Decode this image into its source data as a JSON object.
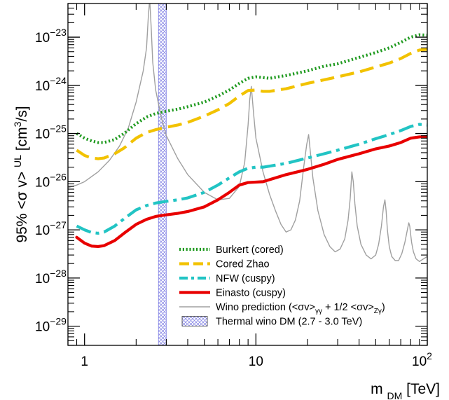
{
  "chart_data": {
    "type": "line",
    "xlabel": "m_DM [TeV]",
    "ylabel": "95% <σ v>^UL [cm^3/s]",
    "x_scale": "log",
    "y_scale": "log",
    "xlim": [
      0.8,
      100
    ],
    "ylim": [
      4e-30,
      5e-23
    ],
    "grid": false,
    "legend_position": "lower-right",
    "x_ticks": [
      {
        "value": 1,
        "label": "1"
      },
      {
        "value": 10,
        "label": "10"
      },
      {
        "value": 100,
        "label": "10",
        "sup": "2"
      }
    ],
    "y_ticks": [
      {
        "value": 1e-29,
        "label": "10",
        "sup": "−29"
      },
      {
        "value": 1e-28,
        "label": "10",
        "sup": "−28"
      },
      {
        "value": 1e-27,
        "label": "10",
        "sup": "−27"
      },
      {
        "value": 1e-26,
        "label": "10",
        "sup": "−26"
      },
      {
        "value": 1e-25,
        "label": "10",
        "sup": "−25"
      },
      {
        "value": 1e-24,
        "label": "10",
        "sup": "−24"
      },
      {
        "value": 1e-23,
        "label": "10",
        "sup": "−23"
      }
    ],
    "band": {
      "name": "Thermal wino DM (2.7 - 3.0 TeV)",
      "x_range": [
        2.7,
        3.0
      ],
      "color": "#8a8ae6"
    },
    "series": [
      {
        "name": "Burkert (cored)",
        "color": "#1f9a1f",
        "style": "dotted",
        "x": [
          0.9,
          1.0,
          1.1,
          1.2,
          1.3,
          1.5,
          1.7,
          2.0,
          2.3,
          2.6,
          3.0,
          3.5,
          4.0,
          5.0,
          6.0,
          7.0,
          8.0,
          9.0,
          10.0,
          11.0,
          12.0,
          15.0,
          20.0,
          25.0,
          30.0,
          40.0,
          50.0,
          60.0,
          70.0,
          80.0,
          90.0,
          100.0
        ],
        "y": [
          1e-25,
          8e-26,
          7e-26,
          6.5e-26,
          6.5e-26,
          7.5e-26,
          1e-25,
          1.6e-25,
          2.2e-25,
          2.6e-25,
          2.9e-25,
          3.2e-25,
          3.6e-25,
          4.5e-25,
          6e-25,
          8e-25,
          1.1e-24,
          1.4e-24,
          1.5e-24,
          1.45e-24,
          1.4e-24,
          1.6e-24,
          2e-24,
          2.5e-24,
          2.8e-24,
          3.8e-24,
          4.8e-24,
          6e-24,
          7.8e-24,
          1e-23,
          1.12e-23,
          1.1e-23
        ]
      },
      {
        "name": "Cored Zhao",
        "color": "#f2c200",
        "style": "dashed",
        "x": [
          0.9,
          1.0,
          1.1,
          1.2,
          1.3,
          1.5,
          1.7,
          2.0,
          2.3,
          2.6,
          3.0,
          3.5,
          4.0,
          5.0,
          6.0,
          7.0,
          8.0,
          9.0,
          10.0,
          11.0,
          12.0,
          15.0,
          20.0,
          25.0,
          30.0,
          40.0,
          50.0,
          60.0,
          70.0,
          80.0,
          90.0,
          100.0
        ],
        "y": [
          4.5e-26,
          3.5e-26,
          3.1e-26,
          3e-26,
          3.1e-26,
          3.8e-26,
          5e-26,
          8e-26,
          1.05e-25,
          1.2e-25,
          1.35e-25,
          1.5e-25,
          1.7e-25,
          2.3e-25,
          3.1e-25,
          4.2e-25,
          6e-25,
          7.8e-25,
          8e-25,
          7.5e-25,
          7.5e-25,
          8.5e-25,
          1.1e-24,
          1.3e-24,
          1.5e-24,
          1.9e-24,
          2.4e-24,
          2.9e-24,
          3.6e-24,
          4.6e-24,
          5.4e-24,
          5.6e-24
        ]
      },
      {
        "name": "NFW (cuspy)",
        "color": "#22c4c4",
        "style": "dashdot",
        "x": [
          0.9,
          1.0,
          1.1,
          1.2,
          1.3,
          1.5,
          1.7,
          2.0,
          2.3,
          2.6,
          3.0,
          3.5,
          4.0,
          5.0,
          6.0,
          7.0,
          8.0,
          9.0,
          10.0,
          11.0,
          12.0,
          15.0,
          20.0,
          25.0,
          30.0,
          40.0,
          50.0,
          60.0,
          70.0,
          80.0,
          90.0,
          100.0
        ],
        "y": [
          1.2e-27,
          1e-27,
          8.8e-28,
          8.5e-28,
          9e-28,
          1.2e-27,
          1.7e-27,
          2.6e-27,
          3.2e-27,
          3.6e-27,
          3.9e-27,
          4.2e-27,
          4.6e-27,
          6e-27,
          8.5e-27,
          1.2e-26,
          1.6e-26,
          1.9e-26,
          2e-26,
          2e-26,
          2.1e-26,
          2.4e-26,
          3.1e-26,
          3.8e-26,
          4.5e-26,
          6e-26,
          7.8e-26,
          9.5e-26,
          1.15e-25,
          1.4e-25,
          1.55e-25,
          1.5e-25
        ]
      },
      {
        "name": "Einasto (cuspy)",
        "color": "#e80000",
        "style": "solid",
        "x": [
          0.9,
          1.0,
          1.1,
          1.2,
          1.3,
          1.5,
          1.7,
          2.0,
          2.3,
          2.6,
          3.0,
          3.5,
          4.0,
          5.0,
          6.0,
          7.0,
          8.0,
          9.0,
          10.0,
          11.0,
          12.0,
          15.0,
          20.0,
          25.0,
          30.0,
          40.0,
          50.0,
          60.0,
          70.0,
          80.0,
          90.0,
          100.0
        ],
        "y": [
          7e-28,
          5.3e-28,
          4.6e-28,
          4.5e-28,
          4.7e-28,
          6e-28,
          8.5e-28,
          1.3e-27,
          1.65e-27,
          1.9e-27,
          2.05e-27,
          2.2e-27,
          2.4e-27,
          3e-27,
          4.2e-27,
          6e-27,
          8.5e-27,
          9.6e-27,
          9.8e-27,
          1e-26,
          1.1e-26,
          1.4e-26,
          1.8e-26,
          2.3e-26,
          2.9e-26,
          3.8e-26,
          4.8e-26,
          5.5e-26,
          6.5e-26,
          8e-26,
          8.5e-26,
          8.6e-26
        ]
      },
      {
        "name": "Wino prediction (<σv>_γγ + 1/2 <σv>_Zγ)",
        "color": "#a0a0a0",
        "style": "solid-thin",
        "x": [
          0.8,
          0.9,
          1.0,
          1.2,
          1.4,
          1.6,
          1.8,
          2.0,
          2.2,
          2.3,
          2.36,
          2.4,
          2.45,
          2.5,
          2.6,
          2.8,
          3.0,
          3.5,
          4.0,
          5.0,
          6.0,
          7.0,
          8.0,
          8.6,
          9.0,
          9.2,
          9.4,
          9.7,
          10.0,
          11.0,
          12.0,
          13.0,
          14.0,
          15.0,
          16.0,
          17.0,
          18.0,
          19.0,
          19.8,
          20.3,
          20.8,
          21.5,
          23.0,
          25.0,
          27.0,
          29.0,
          31.0,
          33.0,
          34.5,
          35.5,
          36.3,
          37.0,
          37.8,
          39.0,
          41.0,
          44.0,
          47.0,
          50.0,
          52.0,
          54.0,
          55.5,
          56.6,
          57.5,
          58.5,
          60.0,
          62.0,
          65.0,
          68.0,
          71.0,
          74.0,
          76.5,
          78.0,
          79.0,
          80.0,
          81.0,
          83.0,
          86.0,
          90.0,
          95.0,
          100.0
        ],
        "y": [
          7.5e-27,
          8.5e-27,
          1e-26,
          1.6e-26,
          2.8e-26,
          5.5e-26,
          1.3e-25,
          4.5e-25,
          2e-24,
          6e-24,
          3e-23,
          6e-23,
          1.5e-23,
          3e-24,
          8e-25,
          2.2e-25,
          9e-26,
          3e-26,
          1.4e-26,
          6e-27,
          4.2e-27,
          4.5e-27,
          8e-27,
          2.5e-26,
          1.5e-25,
          5e-25,
          9.5e-25,
          2.5e-25,
          8e-26,
          1.6e-26,
          5.5e-27,
          2.5e-27,
          1.3e-27,
          9e-28,
          1e-27,
          1.6e-27,
          4e-27,
          2e-26,
          6e-26,
          9.5e-26,
          4e-26,
          1.2e-26,
          2.5e-27,
          8e-28,
          4.5e-28,
          3.5e-28,
          4e-28,
          6.5e-28,
          1.6e-27,
          4.5e-27,
          1.6e-26,
          1e-26,
          3.5e-27,
          1.2e-27,
          5e-28,
          3e-28,
          2.5e-28,
          3e-28,
          5e-28,
          1.2e-27,
          3e-27,
          4.2e-27,
          2.5e-27,
          1e-27,
          4.5e-28,
          2.8e-28,
          2.3e-28,
          2.3e-28,
          3.2e-28,
          5.5e-28,
          1e-27,
          1.4e-27,
          1.2e-27,
          8e-28,
          5.5e-28,
          3.5e-28,
          2.5e-28,
          2.2e-28,
          2.5e-28,
          2.8e-28
        ]
      }
    ],
    "legend": [
      {
        "label": "Burkert (cored)"
      },
      {
        "label": "Cored Zhao"
      },
      {
        "label": "NFW (cuspy)"
      },
      {
        "label": "Einasto (cuspy)"
      },
      {
        "label": "Wino prediction (<σv>",
        "sub1": "γγ",
        "mid": " + 1/2 <σv>",
        "sub2": "Zγ",
        "end": ")"
      },
      {
        "label": "Thermal wino DM (2.7 - 3.0 TeV)"
      }
    ]
  }
}
